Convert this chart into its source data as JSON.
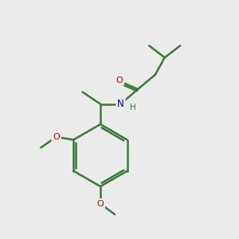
{
  "background_color": "#ebebeb",
  "bond_color": "#3a7a3a",
  "atom_colors": {
    "O": "#cc0000",
    "N": "#0000cc",
    "C": "#3a7a3a",
    "H": "#3a7a3a"
  },
  "figsize": [
    3.0,
    3.0
  ],
  "dpi": 100
}
